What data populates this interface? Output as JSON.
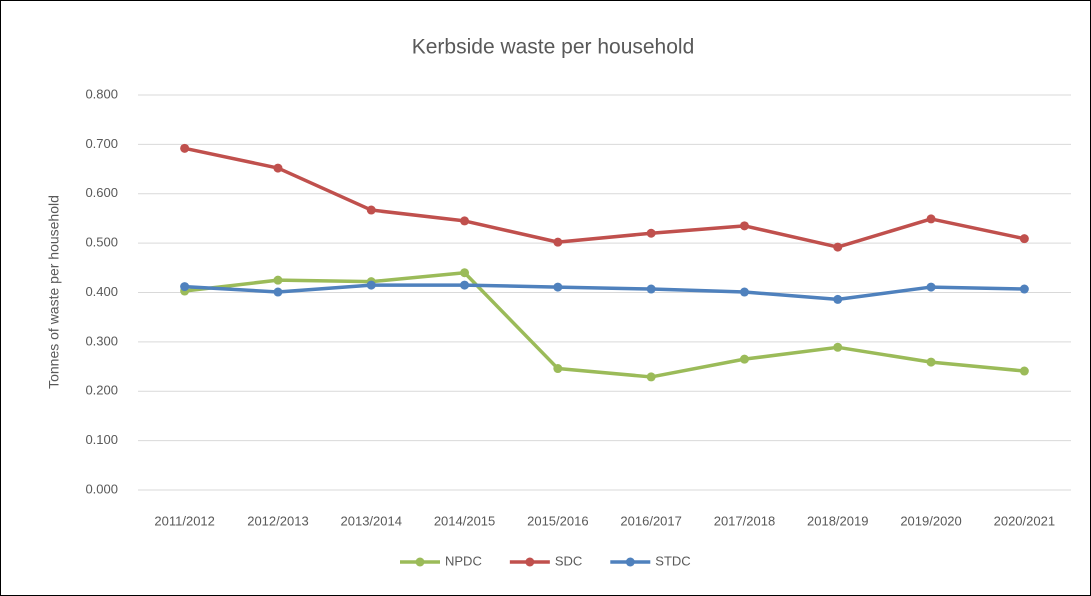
{
  "chart_data": {
    "type": "line",
    "title": "Kerbside waste per household",
    "y_label": "Tonnes of waste per household",
    "categories": [
      "2011/2012",
      "2012/2013",
      "2013/2014",
      "2014/2015",
      "2015/2016",
      "2016/2017",
      "2017/2018",
      "2018/2019",
      "2019/2020",
      "2020/2021"
    ],
    "series": [
      {
        "name": "NPDC",
        "color": "#9bbb59",
        "values": [
          0.403,
          0.425,
          0.422,
          0.44,
          0.246,
          0.229,
          0.265,
          0.289,
          0.259,
          0.241
        ]
      },
      {
        "name": "SDC",
        "color": "#c0504d",
        "values": [
          0.692,
          0.652,
          0.567,
          0.545,
          0.502,
          0.52,
          0.535,
          0.492,
          0.549,
          0.509
        ]
      },
      {
        "name": "STDC",
        "color": "#4f81bd",
        "values": [
          0.412,
          0.401,
          0.415,
          0.415,
          0.411,
          0.407,
          0.401,
          0.386,
          0.411,
          0.407
        ]
      }
    ],
    "ylim": [
      0,
      0.8
    ],
    "yticks": [
      {
        "value": 0,
        "label": "0.000"
      },
      {
        "value": 0.1,
        "label": "0.100"
      },
      {
        "value": 0.2,
        "label": "0.200"
      },
      {
        "value": 0.3,
        "label": "0.300"
      },
      {
        "value": 0.4,
        "label": "0.400"
      },
      {
        "value": 0.5,
        "label": "0.500"
      },
      {
        "value": 0.6,
        "label": "0.600"
      },
      {
        "value": 0.7,
        "label": "0.700"
      },
      {
        "value": 0.8,
        "label": "0.800"
      }
    ],
    "grid": true,
    "legend": "bottom"
  }
}
